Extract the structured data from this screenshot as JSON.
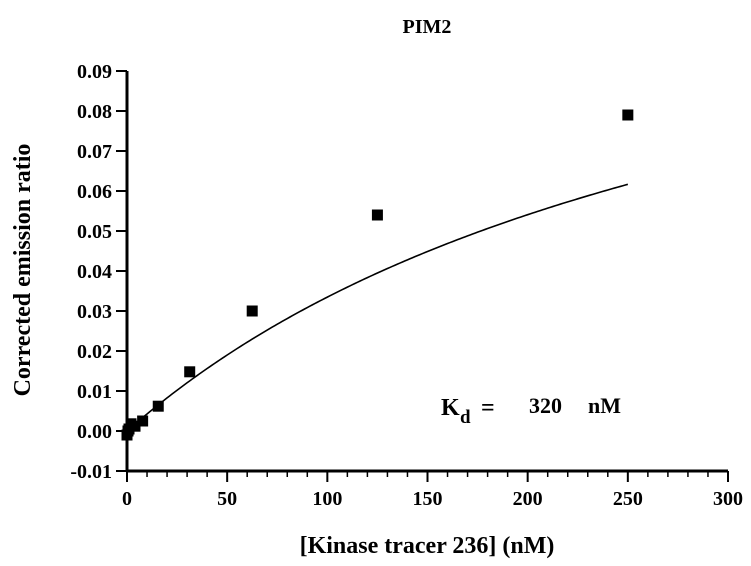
{
  "chart_data": {
    "type": "scatter",
    "title": "PIM2",
    "xlabel": "[Kinase tracer 236] (nM)",
    "ylabel": "Corrected emission ratio",
    "xlim": [
      0,
      300
    ],
    "ylim": [
      -0.01,
      0.09
    ],
    "x_ticks": [
      0,
      50,
      100,
      150,
      200,
      250,
      300
    ],
    "x_tick_labels": [
      "0",
      "50",
      "100",
      "150",
      "200",
      "250",
      "300"
    ],
    "y_ticks": [
      -0.01,
      0.0,
      0.01,
      0.02,
      0.03,
      0.04,
      0.05,
      0.06,
      0.07,
      0.08,
      0.09
    ],
    "y_tick_labels": [
      "-0.01",
      "0.00",
      "0.01",
      "0.02",
      "0.03",
      "0.04",
      "0.05",
      "0.06",
      "0.07",
      "0.08",
      "0.09"
    ],
    "grid": false,
    "series": [
      {
        "values": [
          {
            "x": 0,
            "y": -0.001
          },
          {
            "x": 0.5,
            "y": 0.0
          },
          {
            "x": 1,
            "y": 0.0005
          },
          {
            "x": 2,
            "y": 0.0018
          },
          {
            "x": 4,
            "y": 0.0012
          },
          {
            "x": 7.8,
            "y": 0.0025
          },
          {
            "x": 15.6,
            "y": 0.0062
          },
          {
            "x": 31.3,
            "y": 0.0148
          },
          {
            "x": 62.5,
            "y": 0.03
          },
          {
            "x": 125,
            "y": 0.054
          },
          {
            "x": 250,
            "y": 0.079
          }
        ],
        "color": "#000000",
        "marker": "square"
      }
    ],
    "fit_curve": {
      "model": "one-site binding",
      "kd": 320,
      "bmax": 0.1406,
      "x_range": [
        0,
        250
      ],
      "color": "#000000"
    },
    "annotation": {
      "k_label": "K",
      "k_subscript": "d",
      "equals": "=",
      "value": "320",
      "unit": "nM"
    }
  }
}
